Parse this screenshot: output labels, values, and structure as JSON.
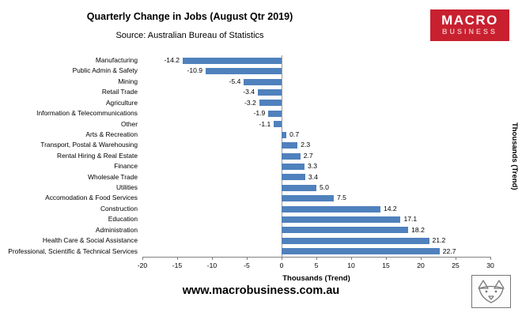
{
  "header": {
    "title": "Quarterly Change in Jobs (August Qtr 2019)",
    "source": "Source: Australian Bureau of Statistics"
  },
  "logo": {
    "line1": "MACRO",
    "line2": "BUSINESS",
    "bg_color": "#c8202f"
  },
  "chart_data": {
    "type": "bar",
    "orientation": "horizontal",
    "categories": [
      "Manufacturing",
      "Public Admin & Safety",
      "Mining",
      "Retail Trade",
      "Agriculture",
      "Information & Telecommunications",
      "Other",
      "Arts & Recreation",
      "Transport, Postal & Warehousing",
      "Rental Hiring & Real Estate",
      "Finance",
      "Wholesale Trade",
      "Utilities",
      "Accomodation & Food Services",
      "Construction",
      "Education",
      "Administration",
      "Health Care & Social Assistance",
      "Professional, Scientific & Technical Services"
    ],
    "values": [
      -14.2,
      -10.9,
      -5.4,
      -3.4,
      -3.2,
      -1.9,
      -1.1,
      0.7,
      2.3,
      2.7,
      3.3,
      3.4,
      5.0,
      7.5,
      14.2,
      17.1,
      18.2,
      21.2,
      22.7
    ],
    "xlabel": "Thousands (Trend)",
    "right_axis_label": "Thousands (Trend)",
    "xlim": [
      -20,
      30
    ],
    "xticks": [
      -20,
      -15,
      -10,
      -5,
      0,
      5,
      10,
      15,
      20,
      25,
      30
    ],
    "bar_color": "#4f81bd",
    "grid": false,
    "legend": false
  },
  "footer": {
    "website": "www.macrobusiness.com.au"
  }
}
